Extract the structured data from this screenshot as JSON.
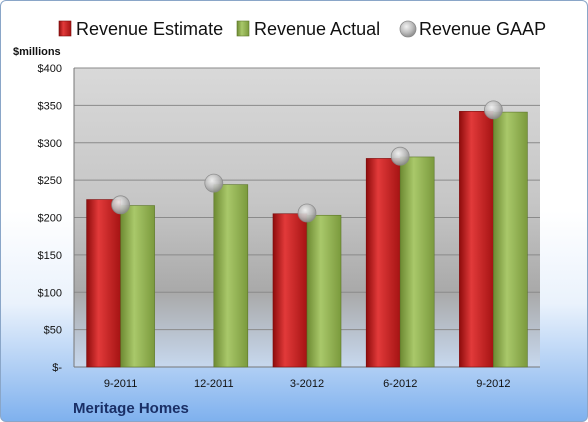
{
  "chart_data": {
    "type": "bar",
    "ylabel": "$millions",
    "footer": "Meritage Homes",
    "categories": [
      "9-2011",
      "12-2011",
      "3-2012",
      "6-2012",
      "9-2012"
    ],
    "ylim": [
      0,
      400
    ],
    "yticks": [
      0,
      50,
      100,
      150,
      200,
      250,
      300,
      350,
      400
    ],
    "ytick_labels": [
      "$-",
      "$50",
      "$100",
      "$150",
      "$200",
      "$250",
      "$300",
      "$350",
      "$400"
    ],
    "legend_position": "top",
    "grid": true,
    "series": [
      {
        "name": "Revenue Estimate",
        "type": "bar",
        "color": "#cc1f1f",
        "values": [
          224,
          null,
          205,
          279,
          342
        ]
      },
      {
        "name": "Revenue Actual",
        "type": "bar",
        "color": "#8fb04c",
        "values": [
          216,
          244,
          203,
          281,
          341
        ]
      },
      {
        "name": "Revenue GAAP",
        "type": "marker",
        "color": "#b5b5b5",
        "values": [
          217,
          246,
          206,
          282,
          344
        ]
      }
    ]
  }
}
